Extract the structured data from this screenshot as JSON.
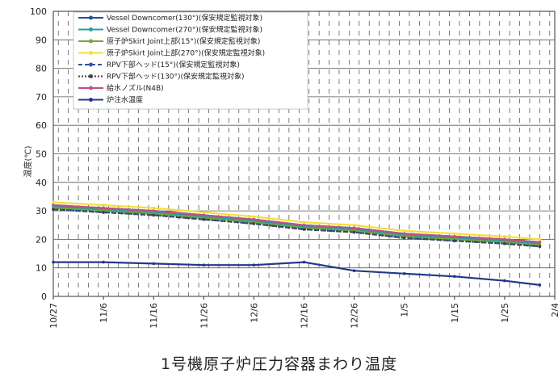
{
  "caption": "1号機原子炉圧力容器まわり温度",
  "chart_data": {
    "type": "line",
    "title": "1号機原子炉圧力容器まわり温度",
    "xlabel": "",
    "ylabel": "温度(℃)",
    "ylim": [
      0,
      100
    ],
    "yticks": [
      0,
      10,
      20,
      30,
      40,
      50,
      60,
      70,
      80,
      90,
      100
    ],
    "x_range": [
      "10/27",
      "2/4"
    ],
    "xticks": [
      "10/27",
      "11/6",
      "11/16",
      "11/26",
      "12/6",
      "12/16",
      "12/26",
      "1/5",
      "1/15",
      "1/25",
      "2/4"
    ],
    "grid": true,
    "legend_position": "top-left",
    "x": [
      "10/27",
      "11/6",
      "11/16",
      "11/26",
      "12/6",
      "12/16",
      "12/26",
      "1/5",
      "1/15",
      "1/25",
      "2/1"
    ],
    "series": [
      {
        "name": "Vessel Downcomer(130°)(保安規定監視対象)",
        "color": "#1f4e9c",
        "style": "solid",
        "values": [
          32,
          31,
          30,
          28.5,
          27,
          25,
          24,
          22,
          21,
          20,
          19
        ]
      },
      {
        "name": "Vessel Downcomer(270°)(保安規定監視対象)",
        "color": "#20a0a0",
        "style": "solid",
        "values": [
          31.5,
          30.5,
          29.5,
          28,
          26.5,
          24.5,
          23.5,
          21.5,
          20.5,
          19.5,
          18.5
        ]
      },
      {
        "name": "原子炉Skirt Joint上部(15°)(保安規定監視対象)",
        "color": "#6fa83a",
        "style": "solid",
        "values": [
          31,
          30,
          29,
          27.5,
          26,
          24,
          23,
          21,
          20,
          19,
          18
        ]
      },
      {
        "name": "原子炉Skirt Joint上部(270°)(保安規定監視対象)",
        "color": "#f2df3a",
        "style": "solid",
        "values": [
          33,
          32,
          31,
          29.5,
          28,
          26,
          25,
          23,
          22,
          21,
          20
        ]
      },
      {
        "name": "RPV下部ヘッド(15°)(保安規定監視対象)",
        "color": "#3050a8",
        "style": "dashed",
        "values": [
          30.5,
          29.5,
          28.5,
          27,
          25.5,
          23.5,
          22.5,
          20.5,
          19.5,
          18.5,
          17.5
        ]
      },
      {
        "name": "RPV下部ヘッド(130°)(保安規定監視対象)",
        "color": "#404040",
        "style": "dotted",
        "values": [
          30.5,
          29.5,
          28.5,
          27,
          25.5,
          23.5,
          22.5,
          20.5,
          19.5,
          18.5,
          17.5
        ]
      },
      {
        "name": "給水ノズル(N4B)",
        "color": "#c0508a",
        "style": "solid",
        "values": [
          32,
          31,
          30,
          28.5,
          27,
          25,
          24,
          22,
          21,
          20,
          19
        ]
      },
      {
        "name": "炉注水温度",
        "color": "#1f3a8a",
        "style": "solid",
        "values": [
          12,
          12,
          11.5,
          11,
          11,
          12,
          9,
          8,
          7,
          5.5,
          4
        ]
      }
    ]
  }
}
